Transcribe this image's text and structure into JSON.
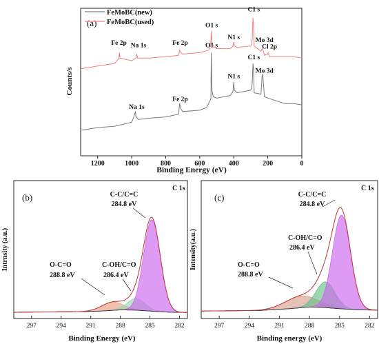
{
  "chart_data": [
    {
      "panel": "(a)",
      "type": "line",
      "xlabel": "Binding Energy (eV)",
      "ylabel": "Counts/s",
      "xlim": [
        1300,
        0
      ],
      "x_ticks": [
        1200,
        1000,
        800,
        600,
        400,
        200,
        0
      ],
      "legend": {
        "position": "top-left"
      },
      "series": [
        {
          "name": "FeMoBC(new)",
          "color": "#7a7a7a",
          "points": [
            [
              1300,
              0.16
            ],
            [
              1200,
              0.18
            ],
            [
              1100,
              0.19
            ],
            [
              1000,
              0.22
            ],
            [
              990,
              0.25
            ],
            [
              978,
              0.3
            ],
            [
              975,
              0.26
            ],
            [
              960,
              0.24
            ],
            [
              900,
              0.25
            ],
            [
              800,
              0.26
            ],
            [
              725,
              0.28
            ],
            [
              718,
              0.36
            ],
            [
              711,
              0.32
            ],
            [
              700,
              0.3
            ],
            [
              600,
              0.31
            ],
            [
              560,
              0.33
            ],
            [
              540,
              0.38
            ],
            [
              534,
              0.4
            ],
            [
              532,
              0.74
            ],
            [
              528,
              0.46
            ],
            [
              520,
              0.41
            ],
            [
              500,
              0.4
            ],
            [
              420,
              0.42
            ],
            [
              405,
              0.45
            ],
            [
              400,
              0.52
            ],
            [
              397,
              0.46
            ],
            [
              380,
              0.44
            ],
            [
              300,
              0.46
            ],
            [
              292,
              0.5
            ],
            [
              287,
              0.66
            ],
            [
              284,
              0.62
            ],
            [
              280,
              0.44
            ],
            [
              240,
              0.43
            ],
            [
              233,
              0.58
            ],
            [
              228,
              0.55
            ],
            [
              220,
              0.41
            ],
            [
              150,
              0.38
            ],
            [
              100,
              0.36
            ],
            [
              50,
              0.36
            ],
            [
              0,
              0.35
            ]
          ]
        },
        {
          "name": "FeMoBC(used)",
          "color": "#f08080",
          "points": [
            [
              1300,
              0.62
            ],
            [
              1200,
              0.64
            ],
            [
              1100,
              0.66
            ],
            [
              1075,
              0.7
            ],
            [
              1072,
              0.74
            ],
            [
              1069,
              0.7
            ],
            [
              1000,
              0.68
            ],
            [
              975,
              0.7
            ],
            [
              970,
              0.73
            ],
            [
              965,
              0.7
            ],
            [
              900,
              0.7
            ],
            [
              800,
              0.71
            ],
            [
              725,
              0.72
            ],
            [
              718,
              0.76
            ],
            [
              711,
              0.74
            ],
            [
              700,
              0.73
            ],
            [
              600,
              0.74
            ],
            [
              545,
              0.76
            ],
            [
              535,
              0.8
            ],
            [
              532,
              0.9
            ],
            [
              528,
              0.82
            ],
            [
              520,
              0.79
            ],
            [
              500,
              0.77
            ],
            [
              420,
              0.77
            ],
            [
              405,
              0.79
            ],
            [
              400,
              0.82
            ],
            [
              397,
              0.79
            ],
            [
              380,
              0.78
            ],
            [
              300,
              0.79
            ],
            [
              292,
              0.83
            ],
            [
              287,
              1.0
            ],
            [
              284,
              0.95
            ],
            [
              280,
              0.79
            ],
            [
              240,
              0.75
            ],
            [
              233,
              0.77
            ],
            [
              228,
              0.76
            ],
            [
              220,
              0.72
            ],
            [
              200,
              0.73
            ],
            [
              198,
              0.74
            ],
            [
              190,
              0.71
            ],
            [
              100,
              0.71
            ],
            [
              50,
              0.71
            ],
            [
              0,
              0.7
            ]
          ]
        }
      ],
      "annotations": [
        {
          "text": "Fe 2p",
          "x": 1075,
          "y": 0.8
        },
        {
          "text": "Na 1s",
          "x": 960,
          "y": 0.78
        },
        {
          "text": "Fe 2p",
          "x": 715,
          "y": 0.8
        },
        {
          "text": "O1 s",
          "x": 530,
          "y": 0.93
        },
        {
          "text": "N1 s",
          "x": 400,
          "y": 0.84
        },
        {
          "text": "C1 s",
          "x": 282,
          "y": 1.05
        },
        {
          "text": "Mo 3d",
          "x": 220,
          "y": 0.82
        },
        {
          "text": "Cl 2p",
          "x": 190,
          "y": 0.77
        },
        {
          "text": "Na 1s",
          "x": 970,
          "y": 0.32
        },
        {
          "text": "Fe 2p",
          "x": 715,
          "y": 0.38
        },
        {
          "text": "O1 s",
          "x": 530,
          "y": 0.78
        },
        {
          "text": "N1 s",
          "x": 400,
          "y": 0.55
        },
        {
          "text": "C1 s",
          "x": 282,
          "y": 0.69
        },
        {
          "text": "Mo 3d",
          "x": 220,
          "y": 0.59
        }
      ]
    },
    {
      "panel": "(b)",
      "type": "line",
      "corner_label": "C 1s",
      "xlabel": "Binding Energy (eV)",
      "ylabel": "Intrnsity (a.u.)",
      "xlim": [
        298.8,
        281.2
      ],
      "ylim": [
        0,
        1
      ],
      "x_ticks": [
        297,
        294,
        291,
        288,
        285,
        282
      ],
      "peaks": [
        {
          "label": "C-C/C=C",
          "energy_label": "284.8 eV",
          "center": 284.8,
          "height": 0.78,
          "width": 0.85,
          "fill": "#cc66ee"
        },
        {
          "label": "C-OH/C=O",
          "energy_label": "286.4 eV",
          "center": 286.4,
          "height": 0.1,
          "width": 0.9,
          "fill": "#9ed6b0"
        },
        {
          "label": "O-C=O",
          "energy_label": "288.8 eV",
          "center": 288.8,
          "height": 0.07,
          "width": 1.1,
          "fill": "#e8a080"
        }
      ],
      "background": [
        [
          298.8,
          0.03
        ],
        [
          292,
          0.035
        ],
        [
          290,
          0.04
        ],
        [
          288,
          0.05
        ],
        [
          286.5,
          0.048
        ],
        [
          285,
          0.04
        ],
        [
          283,
          0.03
        ],
        [
          281.2,
          0.028
        ]
      ]
    },
    {
      "panel": "(c)",
      "type": "line",
      "corner_label": "C 1s",
      "xlabel": "Binding energy (eV)",
      "ylabel": "Intensity(a.u.)",
      "xlim": [
        298.8,
        281.2
      ],
      "ylim": [
        0,
        1
      ],
      "x_ticks": [
        297,
        294,
        291,
        288,
        285,
        282
      ],
      "peaks": [
        {
          "label": "C-C/C=C",
          "energy_label": "284.8 eV",
          "center": 284.8,
          "height": 0.8,
          "width": 0.9,
          "fill": "#cc66ee"
        },
        {
          "label": "C-OH/C=O",
          "energy_label": "286.4 eV",
          "center": 286.4,
          "height": 0.22,
          "width": 0.95,
          "fill": "#6cc088"
        },
        {
          "label": "O-C=O",
          "energy_label": "288.8 eV",
          "center": 288.8,
          "height": 0.1,
          "width": 1.6,
          "fill": "#d9a090"
        }
      ],
      "background": [
        [
          298.8,
          0.04
        ],
        [
          293,
          0.045
        ],
        [
          290,
          0.06
        ],
        [
          288,
          0.075
        ],
        [
          286.5,
          0.07
        ],
        [
          285,
          0.06
        ],
        [
          283,
          0.05
        ],
        [
          281.2,
          0.048
        ]
      ]
    }
  ]
}
